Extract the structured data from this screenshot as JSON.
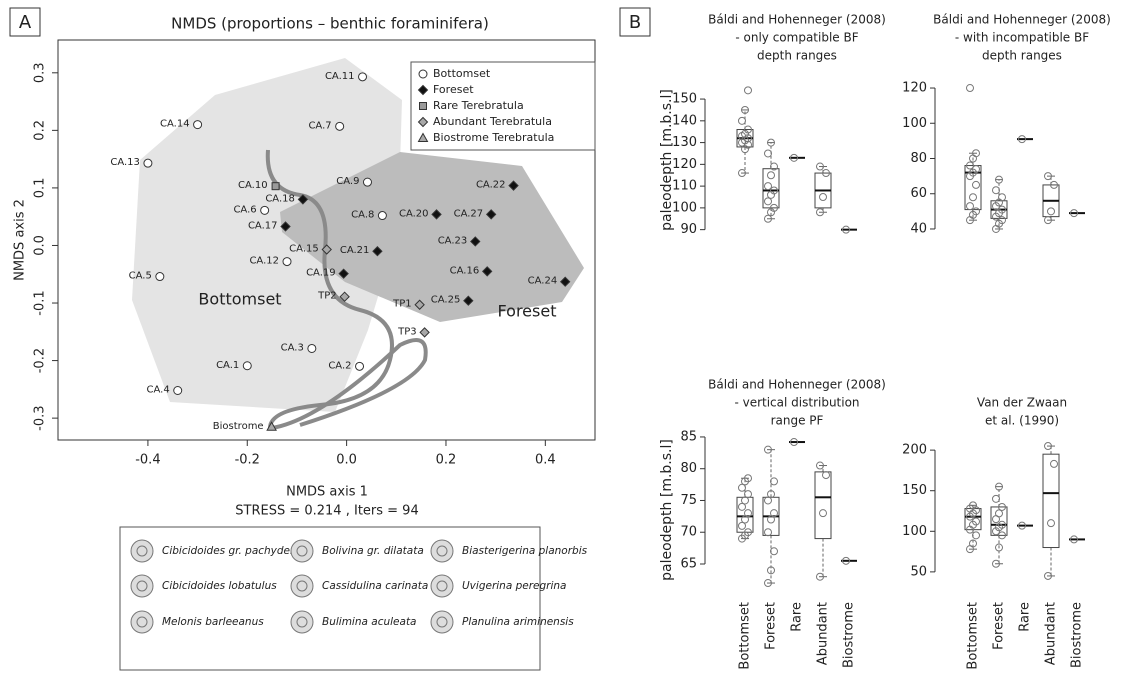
{
  "chart_data": [
    {
      "type": "scatter",
      "panel": "A",
      "title": "NMDS (proportions – benthic foraminifera)",
      "xlabel": "NMDS axis 1",
      "ylabel": "NMDS axis 2",
      "annotation": "STRESS = 0.214 , Iters = 94",
      "region_labels": [
        "Bottomset",
        "Foreset"
      ],
      "xlim": [
        -0.581,
        0.5
      ],
      "ylim": [
        -0.338,
        0.357
      ],
      "xticks": [
        -0.4,
        -0.2,
        {
          "value": 0,
          "label": "0.0"
        },
        0.2,
        0.4
      ],
      "yticks": [
        -0.3,
        -0.2,
        -0.1,
        {
          "value": 0,
          "label": "0.0"
        },
        0.1,
        0.2,
        0.3
      ],
      "legend": "upper right",
      "series": [
        {
          "name": "Bottomset",
          "marker": "circle",
          "color": "#ffffff",
          "labels": [
            "CA.11",
            "CA.14",
            "CA.7",
            "CA.13",
            "CA.6",
            "CA.9",
            "CA.8",
            "CA.12",
            "CA.5",
            "CA.3",
            "CA.1",
            "CA.2",
            "CA.4"
          ],
          "x": [
            0.032,
            -0.3,
            -0.014,
            -0.4,
            -0.165,
            0.042,
            0.072,
            -0.12,
            -0.376,
            -0.07,
            -0.2,
            0.026,
            -0.34
          ],
          "values": [
            0.293,
            0.21,
            0.207,
            0.143,
            0.061,
            0.11,
            0.052,
            -0.028,
            -0.054,
            -0.179,
            -0.209,
            -0.21,
            -0.252
          ]
        },
        {
          "name": "Foreset",
          "marker": "diamond",
          "color": "#111111",
          "labels": [
            "CA.22",
            "CA.18",
            "CA.20",
            "CA.27",
            "CA.17",
            "CA.21",
            "CA.23",
            "CA.19",
            "CA.16",
            "CA.24",
            "CA.25"
          ],
          "x": [
            0.336,
            -0.088,
            0.181,
            0.291,
            -0.123,
            0.062,
            0.259,
            -0.006,
            0.283,
            0.44,
            0.245
          ],
          "values": [
            0.104,
            0.08,
            0.054,
            0.054,
            0.033,
            -0.01,
            0.007,
            -0.049,
            -0.045,
            -0.063,
            -0.096
          ]
        },
        {
          "name": "Rare Terebratula",
          "marker": "square",
          "color": "#9a9a9a",
          "labels": [
            "CA.10"
          ],
          "x": [
            -0.143
          ],
          "values": [
            0.103
          ]
        },
        {
          "name": "Abundant Terebratula",
          "marker": "diamond",
          "color": "#a8a8a8",
          "labels": [
            "CA.15",
            "TP2",
            "TP1",
            "TP3"
          ],
          "x": [
            -0.04,
            -0.004,
            0.147,
            0.157
          ],
          "values": [
            -0.007,
            -0.089,
            -0.103,
            -0.151
          ]
        },
        {
          "name": "Biostrome Terebratula",
          "marker": "triangle",
          "color": "#a8a8a8",
          "labels": [
            "Biostrome"
          ],
          "x": [
            -0.151
          ],
          "values": [
            -0.315
          ]
        }
      ]
    },
    {
      "type": "box",
      "panel": "B",
      "title": [
        "Báldi and Hohenneger (2008)",
        "- only compatible BF",
        "depth ranges"
      ],
      "ylabel": "paleodepth [m.b.s.l]",
      "ylim": [
        88,
        156
      ],
      "yticks": [
        90,
        100,
        110,
        120,
        130,
        140,
        150
      ],
      "boxes": [
        {
          "min": 116,
          "q1": 128,
          "median": 132,
          "q3": 136,
          "max": 145
        },
        {
          "min": 95,
          "q1": 100,
          "median": 108,
          "q3": 118,
          "max": 130
        },
        {
          "median": 123
        },
        {
          "min": 98,
          "q1": 100,
          "median": 108,
          "q3": 116,
          "max": 119
        },
        {
          "median": 90
        }
      ],
      "points": [
        [
          116,
          127,
          129,
          130,
          131,
          132,
          133,
          134,
          136,
          140,
          145,
          154
        ],
        [
          95,
          98,
          100,
          103,
          106,
          108,
          110,
          115,
          119,
          125,
          130
        ],
        [
          123
        ],
        [
          98,
          105,
          116,
          119
        ],
        [
          90
        ]
      ]
    },
    {
      "type": "box",
      "title": [
        "Báldi and Hohenneger (2008)",
        "- with incompatible BF",
        "depth ranges"
      ],
      "ylim": [
        38,
        122
      ],
      "yticks": [
        40,
        60,
        80,
        100,
        120
      ],
      "boxes": [
        {
          "min": 45,
          "q1": 51,
          "median": 72,
          "q3": 76,
          "max": 83
        },
        {
          "min": 40,
          "q1": 46,
          "median": 51,
          "q3": 56,
          "max": 68
        },
        {
          "median": 91
        },
        {
          "min": 45,
          "q1": 47,
          "median": 56,
          "q3": 65,
          "max": 70
        },
        {
          "median": 49
        }
      ],
      "points": [
        [
          45,
          48,
          50,
          53,
          58,
          65,
          70,
          72,
          74,
          76,
          80,
          83,
          120
        ],
        [
          40,
          43,
          45,
          47,
          49,
          51,
          53,
          55,
          58,
          62,
          68
        ],
        [
          91
        ],
        [
          45,
          50,
          65,
          70
        ],
        [
          49
        ]
      ]
    },
    {
      "type": "box",
      "title": [
        "Báldi and Hohenneger (2008)",
        "- vertical distribution",
        "range PF"
      ],
      "ylabel": "paleodepth [m.b.s.l]",
      "ylim": [
        61,
        86
      ],
      "yticks": [
        65,
        70,
        75,
        80,
        85
      ],
      "categories": [
        "Bottomset",
        "Foreset",
        "Rare",
        "Abundant",
        "Biostrome"
      ],
      "boxes": [
        {
          "min": 69,
          "q1": 70,
          "median": 72.5,
          "q3": 75.5,
          "max": 78.5
        },
        {
          "min": 62,
          "q1": 69.5,
          "median": 72.5,
          "q3": 75.5,
          "max": 83
        },
        {
          "median": 84.2
        },
        {
          "min": 63,
          "q1": 69,
          "median": 75.5,
          "q3": 79.5,
          "max": 80.5
        },
        {
          "median": 65.5
        }
      ],
      "points": [
        [
          69,
          69.5,
          70,
          71,
          72,
          73,
          74,
          75,
          76,
          77,
          78,
          78.5
        ],
        [
          62,
          64,
          67,
          70,
          72,
          73,
          75,
          76,
          78,
          83
        ],
        [
          84.2
        ],
        [
          63,
          73,
          79,
          80.5
        ],
        [
          65.5
        ]
      ]
    },
    {
      "type": "box",
      "title": [
        "Van der Zwaan",
        "et al. (1990)"
      ],
      "ylim": [
        40,
        210
      ],
      "yticks": [
        50,
        100,
        150,
        200
      ],
      "categories": [
        "Bottomset",
        "Foreset",
        "Rare",
        "Abundant",
        "Biostrome"
      ],
      "boxes": [
        {
          "min": 78,
          "q1": 102,
          "median": 118,
          "q3": 128,
          "max": 132
        },
        {
          "min": 60,
          "q1": 95,
          "median": 108,
          "q3": 130,
          "max": 155
        },
        {
          "median": 107
        },
        {
          "min": 45,
          "q1": 80,
          "median": 147,
          "q3": 195,
          "max": 205
        },
        {
          "median": 90
        }
      ],
      "points": [
        [
          78,
          85,
          95,
          102,
          108,
          112,
          118,
          122,
          126,
          128,
          132
        ],
        [
          60,
          80,
          95,
          100,
          105,
          108,
          115,
          122,
          130,
          140,
          155
        ],
        [
          107
        ],
        [
          45,
          110,
          183,
          205
        ],
        [
          90
        ]
      ]
    }
  ],
  "species_legend": [
    "Cibicidoides gr. pachyderma",
    "Cibicidoides lobatulus",
    "Melonis barleeanus",
    "Bolivina gr. dilatata",
    "Cassidulina carinata",
    "Bulimina aculeata",
    "Biasterigerina planorbis",
    "Uvigerina peregrina",
    "Planulina ariminensis"
  ]
}
